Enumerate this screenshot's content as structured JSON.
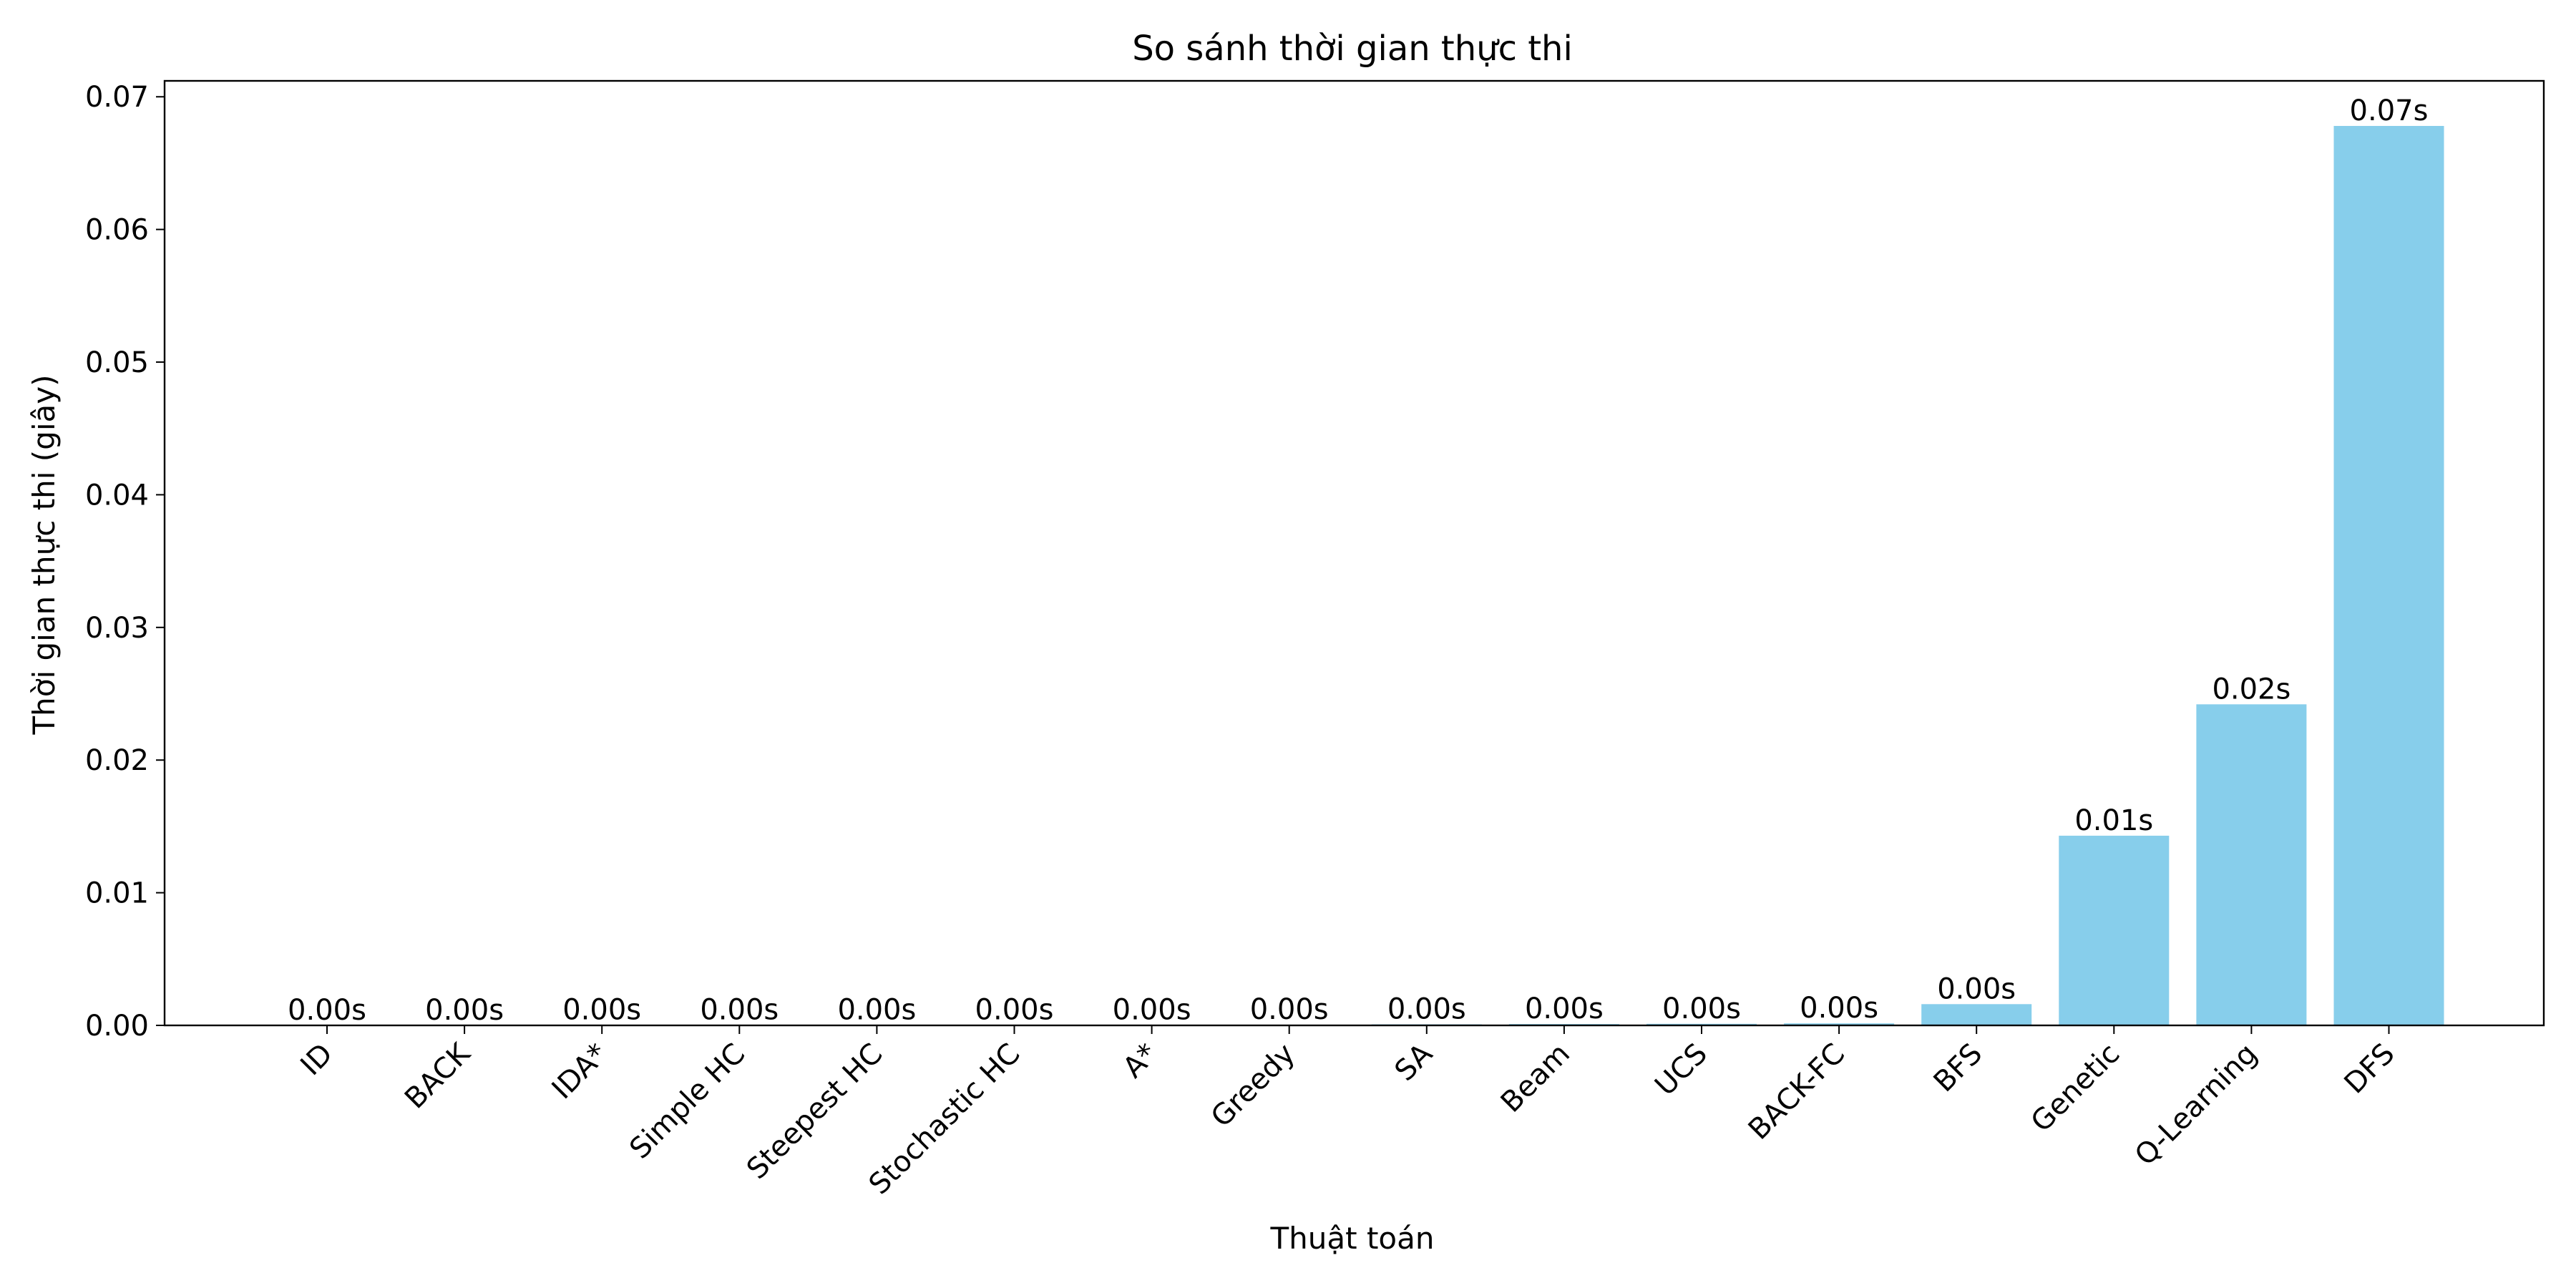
{
  "chart_data": {
    "type": "bar",
    "title": "So sánh thời gian thực thi",
    "xlabel": "Thuật toán",
    "ylabel": "Thời gian thực thi (giây)",
    "categories": [
      "ID",
      "BACK",
      "IDA*",
      "Simple HC",
      "Steepest HC",
      "Stochastic HC",
      "A*",
      "Greedy",
      "SA",
      "Beam",
      "UCS",
      "BACK-FC",
      "BFS",
      "Genetic",
      "Q-Learning",
      "DFS"
    ],
    "values": [
      1e-05,
      1e-05,
      2e-05,
      2e-05,
      3e-05,
      3e-05,
      4e-05,
      5e-05,
      8e-05,
      0.0001,
      0.00012,
      0.00015,
      0.0016,
      0.0143,
      0.0242,
      0.0678
    ],
    "data_labels": [
      "0.00s",
      "0.00s",
      "0.00s",
      "0.00s",
      "0.00s",
      "0.00s",
      "0.00s",
      "0.00s",
      "0.00s",
      "0.00s",
      "0.00s",
      "0.00s",
      "0.00s",
      "0.01s",
      "0.02s",
      "0.07s"
    ],
    "yticks": [
      0.0,
      0.01,
      0.02,
      0.03,
      0.04,
      0.05,
      0.06,
      0.07
    ],
    "ytick_labels": [
      "0.00",
      "0.01",
      "0.02",
      "0.03",
      "0.04",
      "0.05",
      "0.06",
      "0.07"
    ],
    "ylim": [
      0,
      0.0712
    ],
    "bar_color": "#87CEEB",
    "grid": false,
    "legend": "none"
  }
}
